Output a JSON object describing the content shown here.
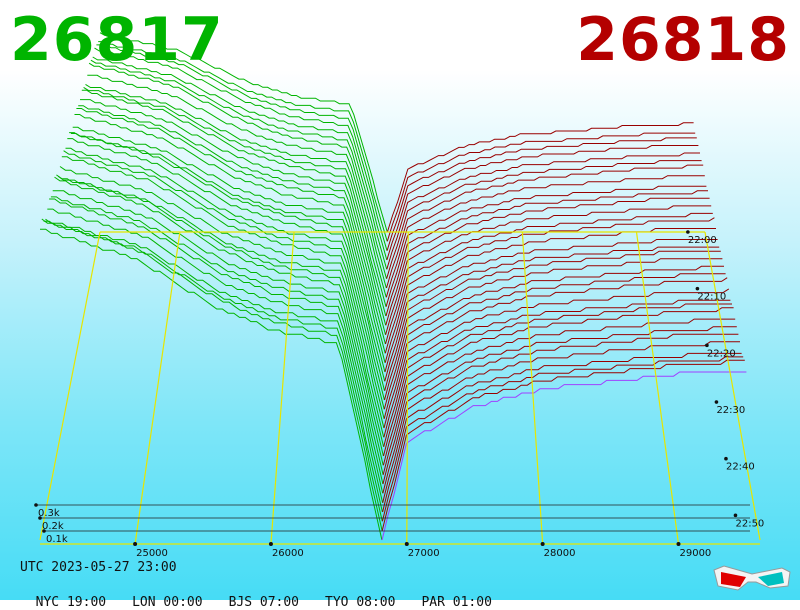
{
  "header": {
    "bid_price": "26817",
    "ask_price": "26818",
    "bid_color": "#00b400",
    "ask_color": "#b40000"
  },
  "footer": {
    "utc": "UTC 2023-05-27 23:00",
    "zones": [
      {
        "label": "NYC 19:00"
      },
      {
        "label": "LON 00:00"
      },
      {
        "label": "BJS 07:00"
      },
      {
        "label": "TYO 08:00"
      },
      {
        "label": "PAR 01:00"
      }
    ]
  },
  "icons": {
    "glasses": "3d-glasses-icon"
  },
  "chart_data": {
    "type": "area",
    "view": "3d-depth-of-market",
    "bid_price": 26817,
    "ask_price": 26818,
    "x_ticks": [
      "25000",
      "26000",
      "27000",
      "28000",
      "29000"
    ],
    "x_tick_values": [
      25000,
      26000,
      27000,
      28000,
      29000
    ],
    "depth_ticks": [
      "0.3k",
      "0.2k",
      "0.1k"
    ],
    "depth_tick_values": [
      300,
      200,
      100
    ],
    "time_ticks": [
      "22:00",
      "22:10",
      "22:20",
      "22:30",
      "22:40",
      "22:50"
    ],
    "series": [
      {
        "name": "bids",
        "color": "#00b400",
        "x": [
          24300,
          25000,
          25600,
          26000,
          26500,
          26817
        ],
        "cumulative_depth": [
          440,
          400,
          330,
          300,
          280,
          0
        ]
      },
      {
        "name": "asks",
        "color": "#990000",
        "x": [
          26818,
          27000,
          27500,
          28000,
          28500,
          29000,
          29500
        ],
        "cumulative_depth": [
          0,
          140,
          190,
          215,
          225,
          235,
          240
        ]
      }
    ],
    "colors": {
      "bid_lines": "#00b400",
      "ask_lines": "#990000",
      "grid": "#e6e600",
      "latest_ask": "#a040ff"
    }
  }
}
